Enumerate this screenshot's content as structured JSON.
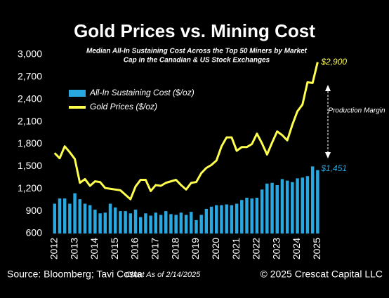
{
  "chart_data": {
    "type": "bar-line",
    "title": "Gold Prices vs. Mining Cost",
    "subtitle": [
      "Median All-In Sustaining Cost Across the Top 50 Miners by Market",
      "Cap in the Canadian & US Stock Exchanges"
    ],
    "x": [
      2012,
      2012.25,
      2012.5,
      2012.75,
      2013,
      2013.25,
      2013.5,
      2013.75,
      2014,
      2014.25,
      2014.5,
      2014.75,
      2015,
      2015.25,
      2015.5,
      2015.75,
      2016,
      2016.25,
      2016.5,
      2016.75,
      2017,
      2017.25,
      2017.5,
      2017.75,
      2018,
      2018.25,
      2018.5,
      2018.75,
      2019,
      2019.25,
      2019.5,
      2019.75,
      2020,
      2020.25,
      2020.5,
      2020.75,
      2021,
      2021.25,
      2021.5,
      2021.75,
      2022,
      2022.25,
      2022.5,
      2022.75,
      2023,
      2023.25,
      2023.5,
      2023.75,
      2024,
      2024.25,
      2024.5,
      2024.75,
      2025
    ],
    "series": [
      {
        "name": "All-In Sustaining Cost ($/oz)",
        "type": "bar",
        "color": "#29a8e0",
        "values": [
          1000,
          1070,
          1070,
          1000,
          1140,
          1060,
          1000,
          980,
          920,
          870,
          880,
          1000,
          950,
          900,
          900,
          870,
          920,
          820,
          870,
          840,
          880,
          850,
          900,
          860,
          850,
          880,
          850,
          890,
          780,
          850,
          930,
          960,
          980,
          980,
          990,
          980,
          1000,
          1050,
          1080,
          1070,
          1080,
          1190,
          1270,
          1280,
          1250,
          1330,
          1310,
          1290,
          1340,
          1350,
          1370,
          1500,
          1451
        ],
        "value_labels": [
          null,
          null,
          null,
          null,
          null,
          null,
          null,
          null,
          null,
          null,
          null,
          null,
          null,
          null,
          null,
          null,
          null,
          null,
          null,
          null,
          null,
          null,
          null,
          null,
          null,
          null,
          null,
          null,
          null,
          null,
          null,
          null,
          null,
          null,
          null,
          null,
          null,
          null,
          null,
          null,
          null,
          null,
          null,
          null,
          null,
          null,
          null,
          null,
          null,
          null,
          null,
          null,
          "$1,451"
        ]
      },
      {
        "name": "Gold Prices ($/oz)",
        "type": "line",
        "color": "#ffff4d",
        "values": [
          1680,
          1610,
          1770,
          1690,
          1600,
          1280,
          1330,
          1240,
          1300,
          1290,
          1210,
          1200,
          1190,
          1180,
          1120,
          1060,
          1230,
          1320,
          1320,
          1170,
          1250,
          1240,
          1280,
          1300,
          1320,
          1250,
          1190,
          1280,
          1290,
          1410,
          1480,
          1520,
          1580,
          1770,
          1890,
          1890,
          1710,
          1760,
          1760,
          1800,
          1940,
          1810,
          1660,
          1820,
          1970,
          1920,
          1850,
          2060,
          2240,
          2330,
          2630,
          2620,
          2900
        ],
        "value_labels": [
          null,
          null,
          null,
          null,
          null,
          null,
          null,
          null,
          null,
          null,
          null,
          null,
          null,
          null,
          null,
          null,
          null,
          null,
          null,
          null,
          null,
          null,
          null,
          null,
          null,
          null,
          null,
          null,
          null,
          null,
          null,
          null,
          null,
          null,
          null,
          null,
          null,
          null,
          null,
          null,
          null,
          null,
          null,
          null,
          null,
          null,
          null,
          null,
          null,
          null,
          null,
          null,
          "$2,900"
        ]
      }
    ],
    "xlim": [
      2011.8,
      2025.3
    ],
    "xticks": [
      2012,
      2013,
      2014,
      2015,
      2016,
      2017,
      2018,
      2019,
      2020,
      2021,
      2022,
      2023,
      2024,
      2025
    ],
    "ylim": [
      600,
      3000
    ],
    "yticks": [
      600,
      900,
      {
        "value": 1200,
        "label": "1,200"
      },
      {
        "value": 1500,
        "label": "1,500"
      },
      {
        "value": 1800,
        "label": "1,800"
      },
      {
        "value": 2100,
        "label": "2,100"
      },
      {
        "value": 2400,
        "label": "2,400"
      },
      {
        "value": 2700,
        "label": "2,700"
      },
      {
        "value": 3000,
        "label": "3,000"
      }
    ],
    "annotation": "Production Margin",
    "source": "Source: Bloomberg; Tavi Costa",
    "date_note": "Chart As of 2/14/2025",
    "copyright": "© 2025 Crescat Capital LLC"
  }
}
